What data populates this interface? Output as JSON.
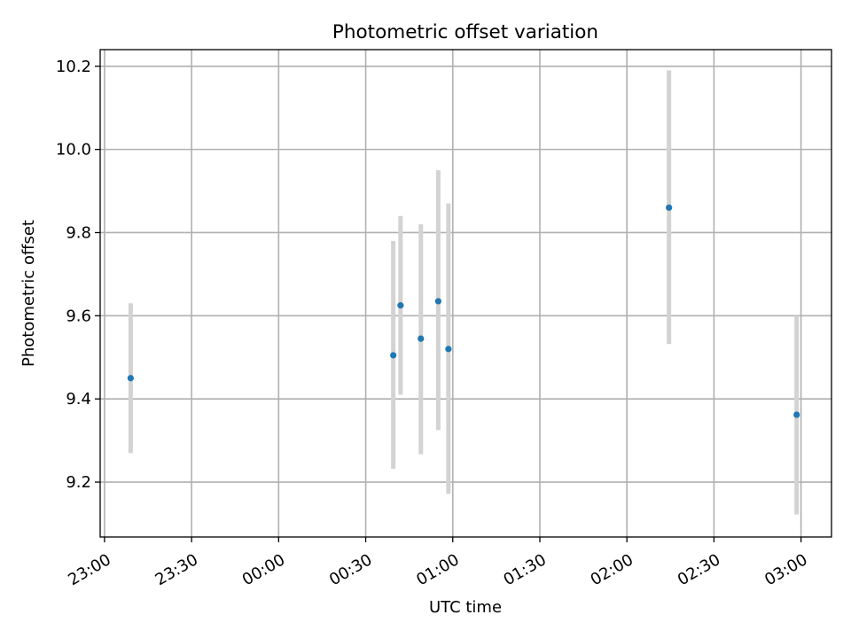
{
  "chart_data": {
    "type": "scatter",
    "title": "Photometric offset variation",
    "xlabel": "UTC time",
    "ylabel": "Photometric offset",
    "x_axis_type": "time",
    "x_range": [
      "22:58:30",
      "03:10:30"
    ],
    "y_range": [
      9.068,
      10.24
    ],
    "grid": true,
    "x_ticks": [
      "23:00",
      "23:30",
      "00:00",
      "00:30",
      "01:00",
      "01:30",
      "02:00",
      "02:30",
      "03:00"
    ],
    "y_ticks": [
      "9.2",
      "9.4",
      "9.6",
      "9.8",
      "10.0",
      "10.2"
    ],
    "y_tick_values": [
      9.2,
      9.4,
      9.6,
      9.8,
      10.0,
      10.2
    ],
    "marker_color": "#1f77b4",
    "errorbar_color": "#d3d3d3",
    "points": [
      {
        "time": "23:09:00",
        "y": 9.45,
        "low": 9.27,
        "high": 9.63
      },
      {
        "time": "00:39:30",
        "y": 9.505,
        "low": 9.232,
        "high": 9.78
      },
      {
        "time": "00:42:00",
        "y": 9.625,
        "low": 9.41,
        "high": 9.84
      },
      {
        "time": "00:49:00",
        "y": 9.545,
        "low": 9.267,
        "high": 9.82
      },
      {
        "time": "00:55:00",
        "y": 9.635,
        "low": 9.325,
        "high": 9.95
      },
      {
        "time": "00:58:30",
        "y": 9.52,
        "low": 9.172,
        "high": 9.87
      },
      {
        "time": "02:14:30",
        "y": 9.86,
        "low": 9.532,
        "high": 10.19
      },
      {
        "time": "02:58:30",
        "y": 9.362,
        "low": 9.122,
        "high": 9.6
      }
    ]
  }
}
